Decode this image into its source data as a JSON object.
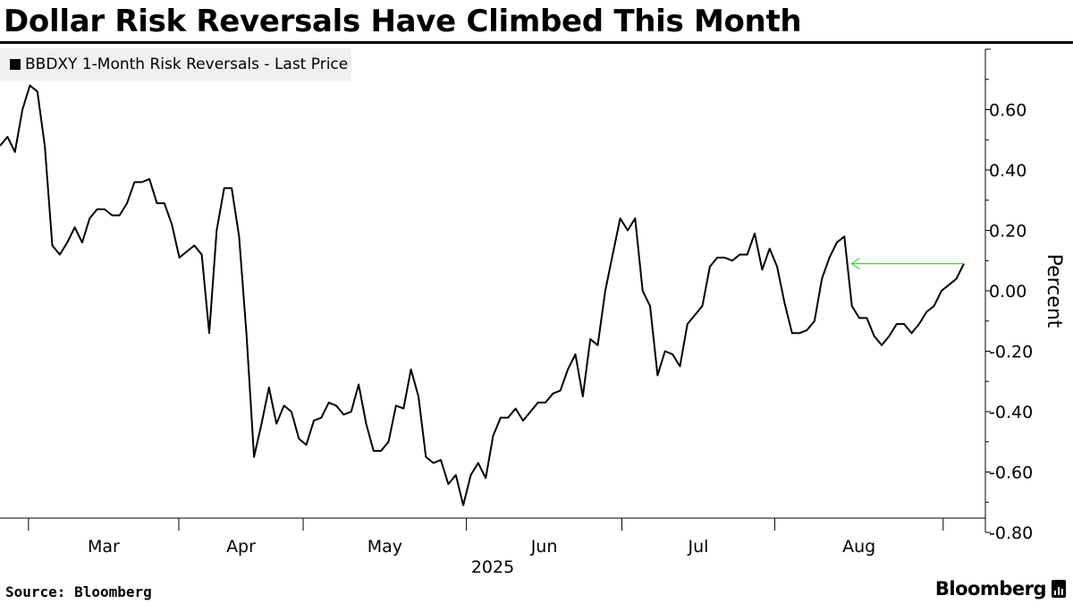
{
  "title": "Dollar Risk Reversals Have Climbed This Month",
  "source": "Source: Bloomberg",
  "brand": "Bloomberg",
  "colors": {
    "line": "#000000",
    "arrow": "#33dd33",
    "legend_bg": "#f0f0f0"
  },
  "chart_data": {
    "type": "line",
    "title": "Dollar Risk Reversals Have Climbed This Month",
    "ylabel": "Percent",
    "xlabel": "2025",
    "ylim": [
      -0.8,
      0.8
    ],
    "yticks": [
      0.6,
      0.4,
      0.2,
      0.0,
      -0.2,
      -0.4,
      -0.6,
      -0.8
    ],
    "ytick_labels": [
      "0.60",
      "0.40",
      "0.20",
      "0.00",
      "-0.20",
      "-0.40",
      "-0.60",
      "-0.80"
    ],
    "month_labels": [
      "Mar",
      "Apr",
      "May",
      "Jun",
      "Jul",
      "Aug"
    ],
    "year_label": "2025",
    "legend": [
      "BBDXY 1-Month Risk Reversals - Last Price"
    ],
    "annotation": "arrow pointing to latest value level",
    "series": [
      {
        "name": "BBDXY 1-Month Risk Reversals - Last Price",
        "values": [
          0.48,
          0.51,
          0.46,
          0.6,
          0.68,
          0.66,
          0.48,
          0.15,
          0.12,
          0.16,
          0.21,
          0.16,
          0.24,
          0.27,
          0.27,
          0.25,
          0.25,
          0.29,
          0.36,
          0.36,
          0.37,
          0.29,
          0.29,
          0.22,
          0.11,
          0.13,
          0.15,
          0.12,
          -0.14,
          0.2,
          0.34,
          0.34,
          0.18,
          -0.15,
          -0.55,
          -0.44,
          -0.32,
          -0.44,
          -0.38,
          -0.4,
          -0.49,
          -0.51,
          -0.43,
          -0.42,
          -0.37,
          -0.38,
          -0.41,
          -0.4,
          -0.31,
          -0.44,
          -0.53,
          -0.53,
          -0.5,
          -0.38,
          -0.39,
          -0.26,
          -0.35,
          -0.55,
          -0.57,
          -0.56,
          -0.64,
          -0.61,
          -0.71,
          -0.61,
          -0.57,
          -0.62,
          -0.48,
          -0.42,
          -0.42,
          -0.39,
          -0.43,
          -0.4,
          -0.37,
          -0.37,
          -0.34,
          -0.33,
          -0.26,
          -0.21,
          -0.35,
          -0.16,
          -0.18,
          0.0,
          0.12,
          0.24,
          0.2,
          0.24,
          0.0,
          -0.05,
          -0.28,
          -0.2,
          -0.21,
          -0.25,
          -0.11,
          -0.08,
          -0.05,
          0.08,
          0.11,
          0.11,
          0.1,
          0.12,
          0.12,
          0.19,
          0.07,
          0.14,
          0.08,
          -0.04,
          -0.14,
          -0.14,
          -0.13,
          -0.1,
          0.04,
          0.11,
          0.16,
          0.18,
          -0.05,
          -0.09,
          -0.09,
          -0.15,
          -0.18,
          -0.15,
          -0.11,
          -0.11,
          -0.14,
          -0.11,
          -0.07,
          -0.05,
          0.0,
          0.02,
          0.04,
          0.09
        ]
      }
    ]
  }
}
